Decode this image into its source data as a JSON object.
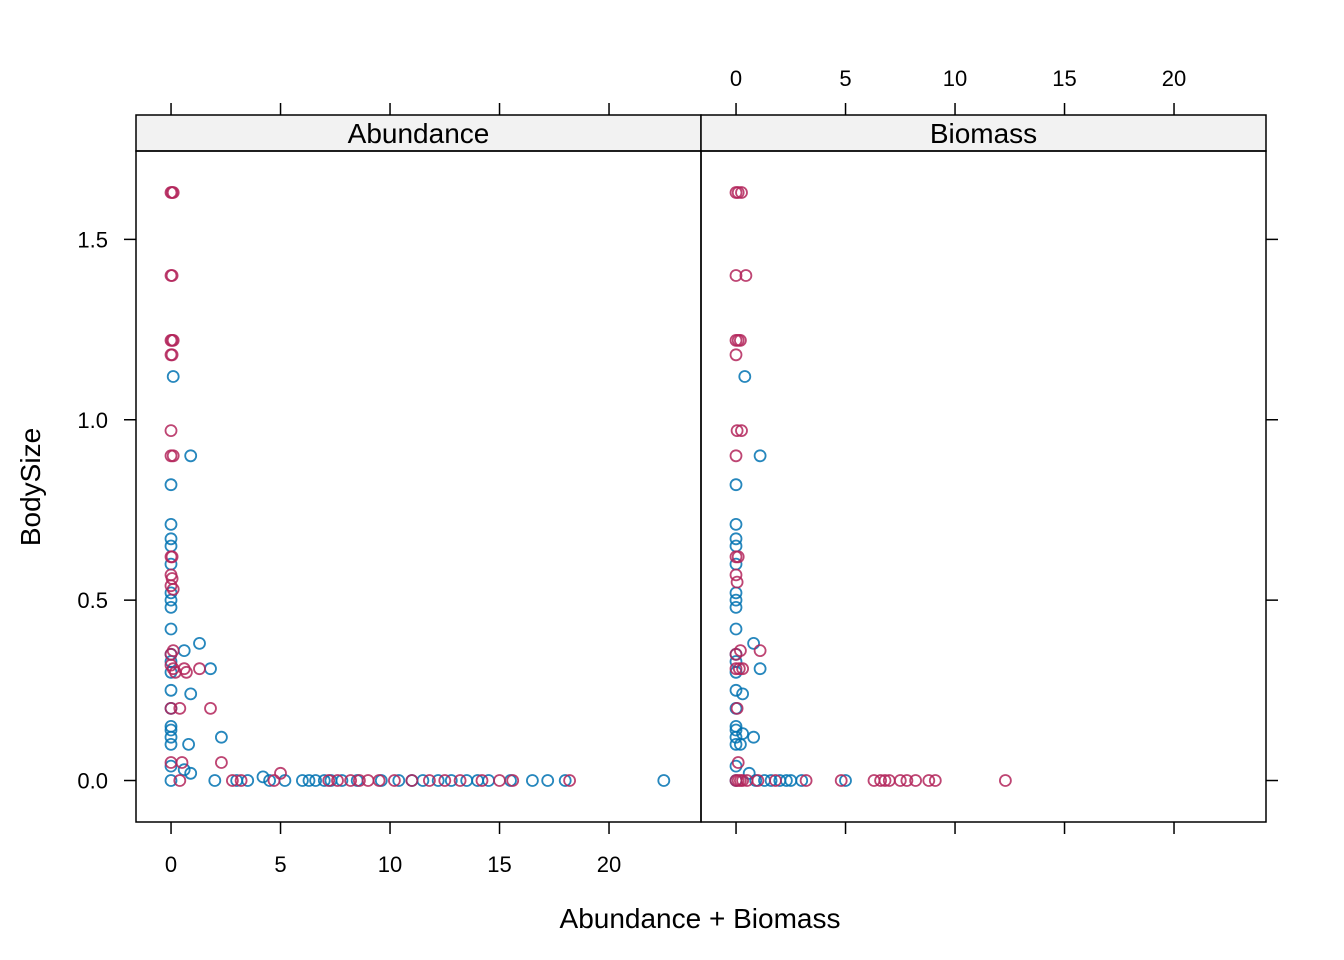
{
  "chart_data": {
    "type": "scatter",
    "layout": "trellis-two-panels",
    "xlabel": "Abundance + Biomass",
    "ylabel": "BodySize",
    "xlim": [
      -1.6,
      24.2
    ],
    "ylim": [
      -0.115,
      1.745
    ],
    "x_ticks": [
      0,
      5,
      10,
      15,
      20
    ],
    "y_ticks": [
      0.0,
      0.5,
      1.0,
      1.5
    ],
    "x_tick_labels": [
      "0",
      "5",
      "10",
      "15",
      "20"
    ],
    "y_tick_labels": [
      "0.0",
      "0.5",
      "1.0",
      "1.5"
    ],
    "colors": {
      "series_a": "#0072B2",
      "series_b": "#B3245B",
      "strip_bg": "#F2F2F2"
    },
    "panels": [
      {
        "name": "Abundance",
        "series": [
          {
            "color": "#0072B2",
            "points": [
              [
                0,
                0.0
              ],
              [
                0,
                0.04
              ],
              [
                0,
                0.1
              ],
              [
                0,
                0.12
              ],
              [
                0,
                0.14
              ],
              [
                0,
                0.15
              ],
              [
                0,
                0.2
              ],
              [
                0,
                0.25
              ],
              [
                0,
                0.3
              ],
              [
                0,
                0.33
              ],
              [
                0,
                0.35
              ],
              [
                0,
                0.42
              ],
              [
                0,
                0.48
              ],
              [
                0,
                0.5
              ],
              [
                0,
                0.52
              ],
              [
                0,
                0.6
              ],
              [
                0,
                0.65
              ],
              [
                0,
                0.67
              ],
              [
                0,
                0.71
              ],
              [
                0,
                0.82
              ],
              [
                0.1,
                1.12
              ],
              [
                0.9,
                0.9
              ],
              [
                0.6,
                0.36
              ],
              [
                1.3,
                0.38
              ],
              [
                1.8,
                0.31
              ],
              [
                0.9,
                0.24
              ],
              [
                0.8,
                0.1
              ],
              [
                0.6,
                0.03
              ],
              [
                0.9,
                0.02
              ],
              [
                2.3,
                0.12
              ],
              [
                2.0,
                0.0
              ],
              [
                3.0,
                0.0
              ],
              [
                3.5,
                0.0
              ],
              [
                4.2,
                0.01
              ],
              [
                4.5,
                0.0
              ],
              [
                5.2,
                0.0
              ],
              [
                6.0,
                0.0
              ],
              [
                6.3,
                0.0
              ],
              [
                6.6,
                0.0
              ],
              [
                7.0,
                0.0
              ],
              [
                7.3,
                0.0
              ],
              [
                7.8,
                0.0
              ],
              [
                8.5,
                0.0
              ],
              [
                9.6,
                0.0
              ],
              [
                10.4,
                0.0
              ],
              [
                11.0,
                0.0
              ],
              [
                11.5,
                0.0
              ],
              [
                12.2,
                0.0
              ],
              [
                12.8,
                0.0
              ],
              [
                13.5,
                0.0
              ],
              [
                14.0,
                0.0
              ],
              [
                14.5,
                0.0
              ],
              [
                15.5,
                0.0
              ],
              [
                16.5,
                0.0
              ],
              [
                17.2,
                0.0
              ],
              [
                18.0,
                0.0
              ],
              [
                22.5,
                0.0
              ]
            ]
          },
          {
            "color": "#B3245B",
            "points": [
              [
                0,
                1.63
              ],
              [
                0.05,
                1.63
              ],
              [
                0.1,
                1.63
              ],
              [
                0,
                1.4
              ],
              [
                0.05,
                1.4
              ],
              [
                0,
                1.22
              ],
              [
                0.05,
                1.22
              ],
              [
                0.1,
                1.22
              ],
              [
                0,
                1.18
              ],
              [
                0.05,
                1.18
              ],
              [
                0,
                0.97
              ],
              [
                0,
                0.9
              ],
              [
                0.1,
                0.9
              ],
              [
                0,
                0.62
              ],
              [
                0.05,
                0.62
              ],
              [
                0,
                0.57
              ],
              [
                0.05,
                0.56
              ],
              [
                0,
                0.54
              ],
              [
                0.1,
                0.53
              ],
              [
                0,
                0.35
              ],
              [
                0.1,
                0.36
              ],
              [
                0,
                0.32
              ],
              [
                0.1,
                0.31
              ],
              [
                0.2,
                0.3
              ],
              [
                0,
                0.2
              ],
              [
                0.4,
                0.2
              ],
              [
                0.6,
                0.31
              ],
              [
                0.7,
                0.3
              ],
              [
                1.3,
                0.31
              ],
              [
                1.8,
                0.2
              ],
              [
                2.3,
                0.05
              ],
              [
                0,
                0.05
              ],
              [
                0.4,
                0.0
              ],
              [
                0.5,
                0.05
              ],
              [
                2.8,
                0.0
              ],
              [
                3.2,
                0.0
              ],
              [
                4.7,
                0.0
              ],
              [
                5.0,
                0.02
              ],
              [
                7.2,
                0.0
              ],
              [
                7.6,
                0.0
              ],
              [
                8.2,
                0.0
              ],
              [
                8.6,
                0.0
              ],
              [
                9.0,
                0.0
              ],
              [
                9.5,
                0.0
              ],
              [
                10.2,
                0.0
              ],
              [
                11.0,
                0.0
              ],
              [
                11.8,
                0.0
              ],
              [
                12.5,
                0.0
              ],
              [
                13.2,
                0.0
              ],
              [
                14.2,
                0.0
              ],
              [
                15.0,
                0.0
              ],
              [
                15.6,
                0.0
              ],
              [
                18.2,
                0.0
              ]
            ]
          }
        ]
      },
      {
        "name": "Biomass",
        "series": [
          {
            "color": "#0072B2",
            "points": [
              [
                0,
                0.0
              ],
              [
                0,
                0.04
              ],
              [
                0,
                0.1
              ],
              [
                0,
                0.12
              ],
              [
                0,
                0.14
              ],
              [
                0,
                0.15
              ],
              [
                0,
                0.2
              ],
              [
                0,
                0.25
              ],
              [
                0,
                0.3
              ],
              [
                0,
                0.33
              ],
              [
                0,
                0.35
              ],
              [
                0,
                0.42
              ],
              [
                0,
                0.48
              ],
              [
                0,
                0.5
              ],
              [
                0,
                0.52
              ],
              [
                0,
                0.6
              ],
              [
                0,
                0.65
              ],
              [
                0,
                0.67
              ],
              [
                0,
                0.71
              ],
              [
                0,
                0.82
              ],
              [
                0.4,
                1.12
              ],
              [
                1.1,
                0.9
              ],
              [
                0.3,
                0.24
              ],
              [
                0.8,
                0.38
              ],
              [
                1.1,
                0.31
              ],
              [
                0.3,
                0.13
              ],
              [
                0.2,
                0.1
              ],
              [
                0.8,
                0.12
              ],
              [
                0.6,
                0.02
              ],
              [
                0.9,
                0.0
              ],
              [
                1.3,
                0.0
              ],
              [
                1.6,
                0.0
              ],
              [
                2.0,
                0.0
              ],
              [
                2.3,
                0.0
              ],
              [
                2.5,
                0.0
              ],
              [
                3.0,
                0.0
              ],
              [
                5.0,
                0.0
              ]
            ]
          },
          {
            "color": "#B3245B",
            "points": [
              [
                0,
                1.63
              ],
              [
                0.1,
                1.63
              ],
              [
                0.25,
                1.63
              ],
              [
                0,
                1.4
              ],
              [
                0.45,
                1.4
              ],
              [
                0,
                1.22
              ],
              [
                0.1,
                1.22
              ],
              [
                0.2,
                1.22
              ],
              [
                0,
                1.18
              ],
              [
                0.05,
                0.97
              ],
              [
                0.25,
                0.97
              ],
              [
                0,
                0.9
              ],
              [
                0,
                0.62
              ],
              [
                0.1,
                0.62
              ],
              [
                0,
                0.57
              ],
              [
                0.05,
                0.55
              ],
              [
                0,
                0.35
              ],
              [
                0.2,
                0.36
              ],
              [
                1.1,
                0.36
              ],
              [
                0,
                0.31
              ],
              [
                0.15,
                0.31
              ],
              [
                0.3,
                0.31
              ],
              [
                0.05,
                0.2
              ],
              [
                0.1,
                0.05
              ],
              [
                0,
                0.0
              ],
              [
                0.1,
                0.0
              ],
              [
                0.2,
                0.0
              ],
              [
                0.3,
                0.0
              ],
              [
                0.5,
                0.0
              ],
              [
                1.0,
                0.0
              ],
              [
                1.8,
                0.0
              ],
              [
                3.2,
                0.0
              ],
              [
                4.8,
                0.0
              ],
              [
                6.3,
                0.0
              ],
              [
                6.6,
                0.0
              ],
              [
                6.8,
                0.0
              ],
              [
                7.0,
                0.0
              ],
              [
                7.5,
                0.0
              ],
              [
                7.8,
                0.0
              ],
              [
                8.2,
                0.0
              ],
              [
                8.8,
                0.0
              ],
              [
                9.1,
                0.0
              ],
              [
                12.3,
                0.0
              ]
            ]
          }
        ]
      }
    ]
  }
}
